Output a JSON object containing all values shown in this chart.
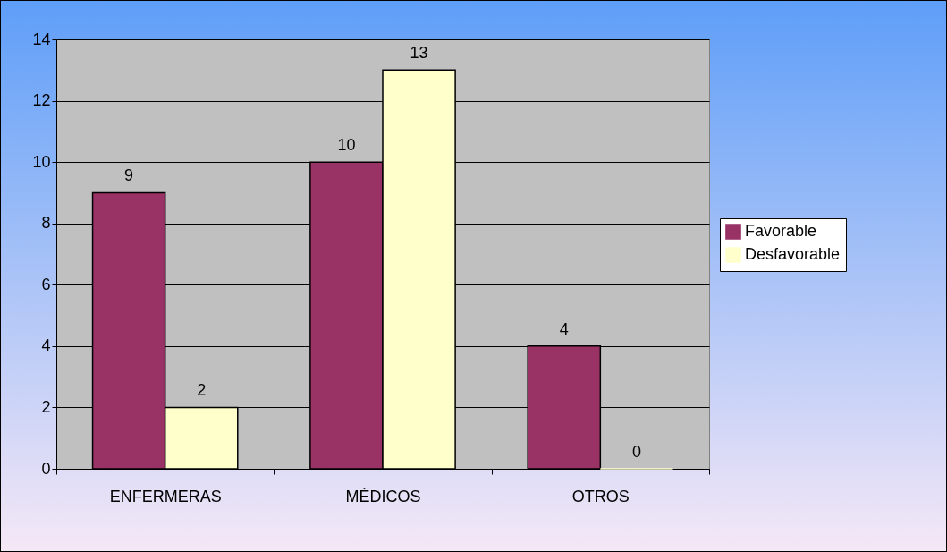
{
  "chart_data": {
    "type": "bar",
    "categories": [
      "ENFERMERAS",
      "MÉDICOS",
      "OTROS"
    ],
    "series": [
      {
        "name": "Favorable",
        "color": "#993366",
        "values": [
          9,
          10,
          4
        ]
      },
      {
        "name": "Desfavorable",
        "color": "#ffffcc",
        "values": [
          2,
          13,
          0
        ]
      }
    ],
    "ylim": [
      0,
      14
    ],
    "yticks": [
      0,
      2,
      4,
      6,
      8,
      10,
      12,
      14
    ],
    "grid": "y",
    "legend": "right",
    "data_labels": true
  }
}
